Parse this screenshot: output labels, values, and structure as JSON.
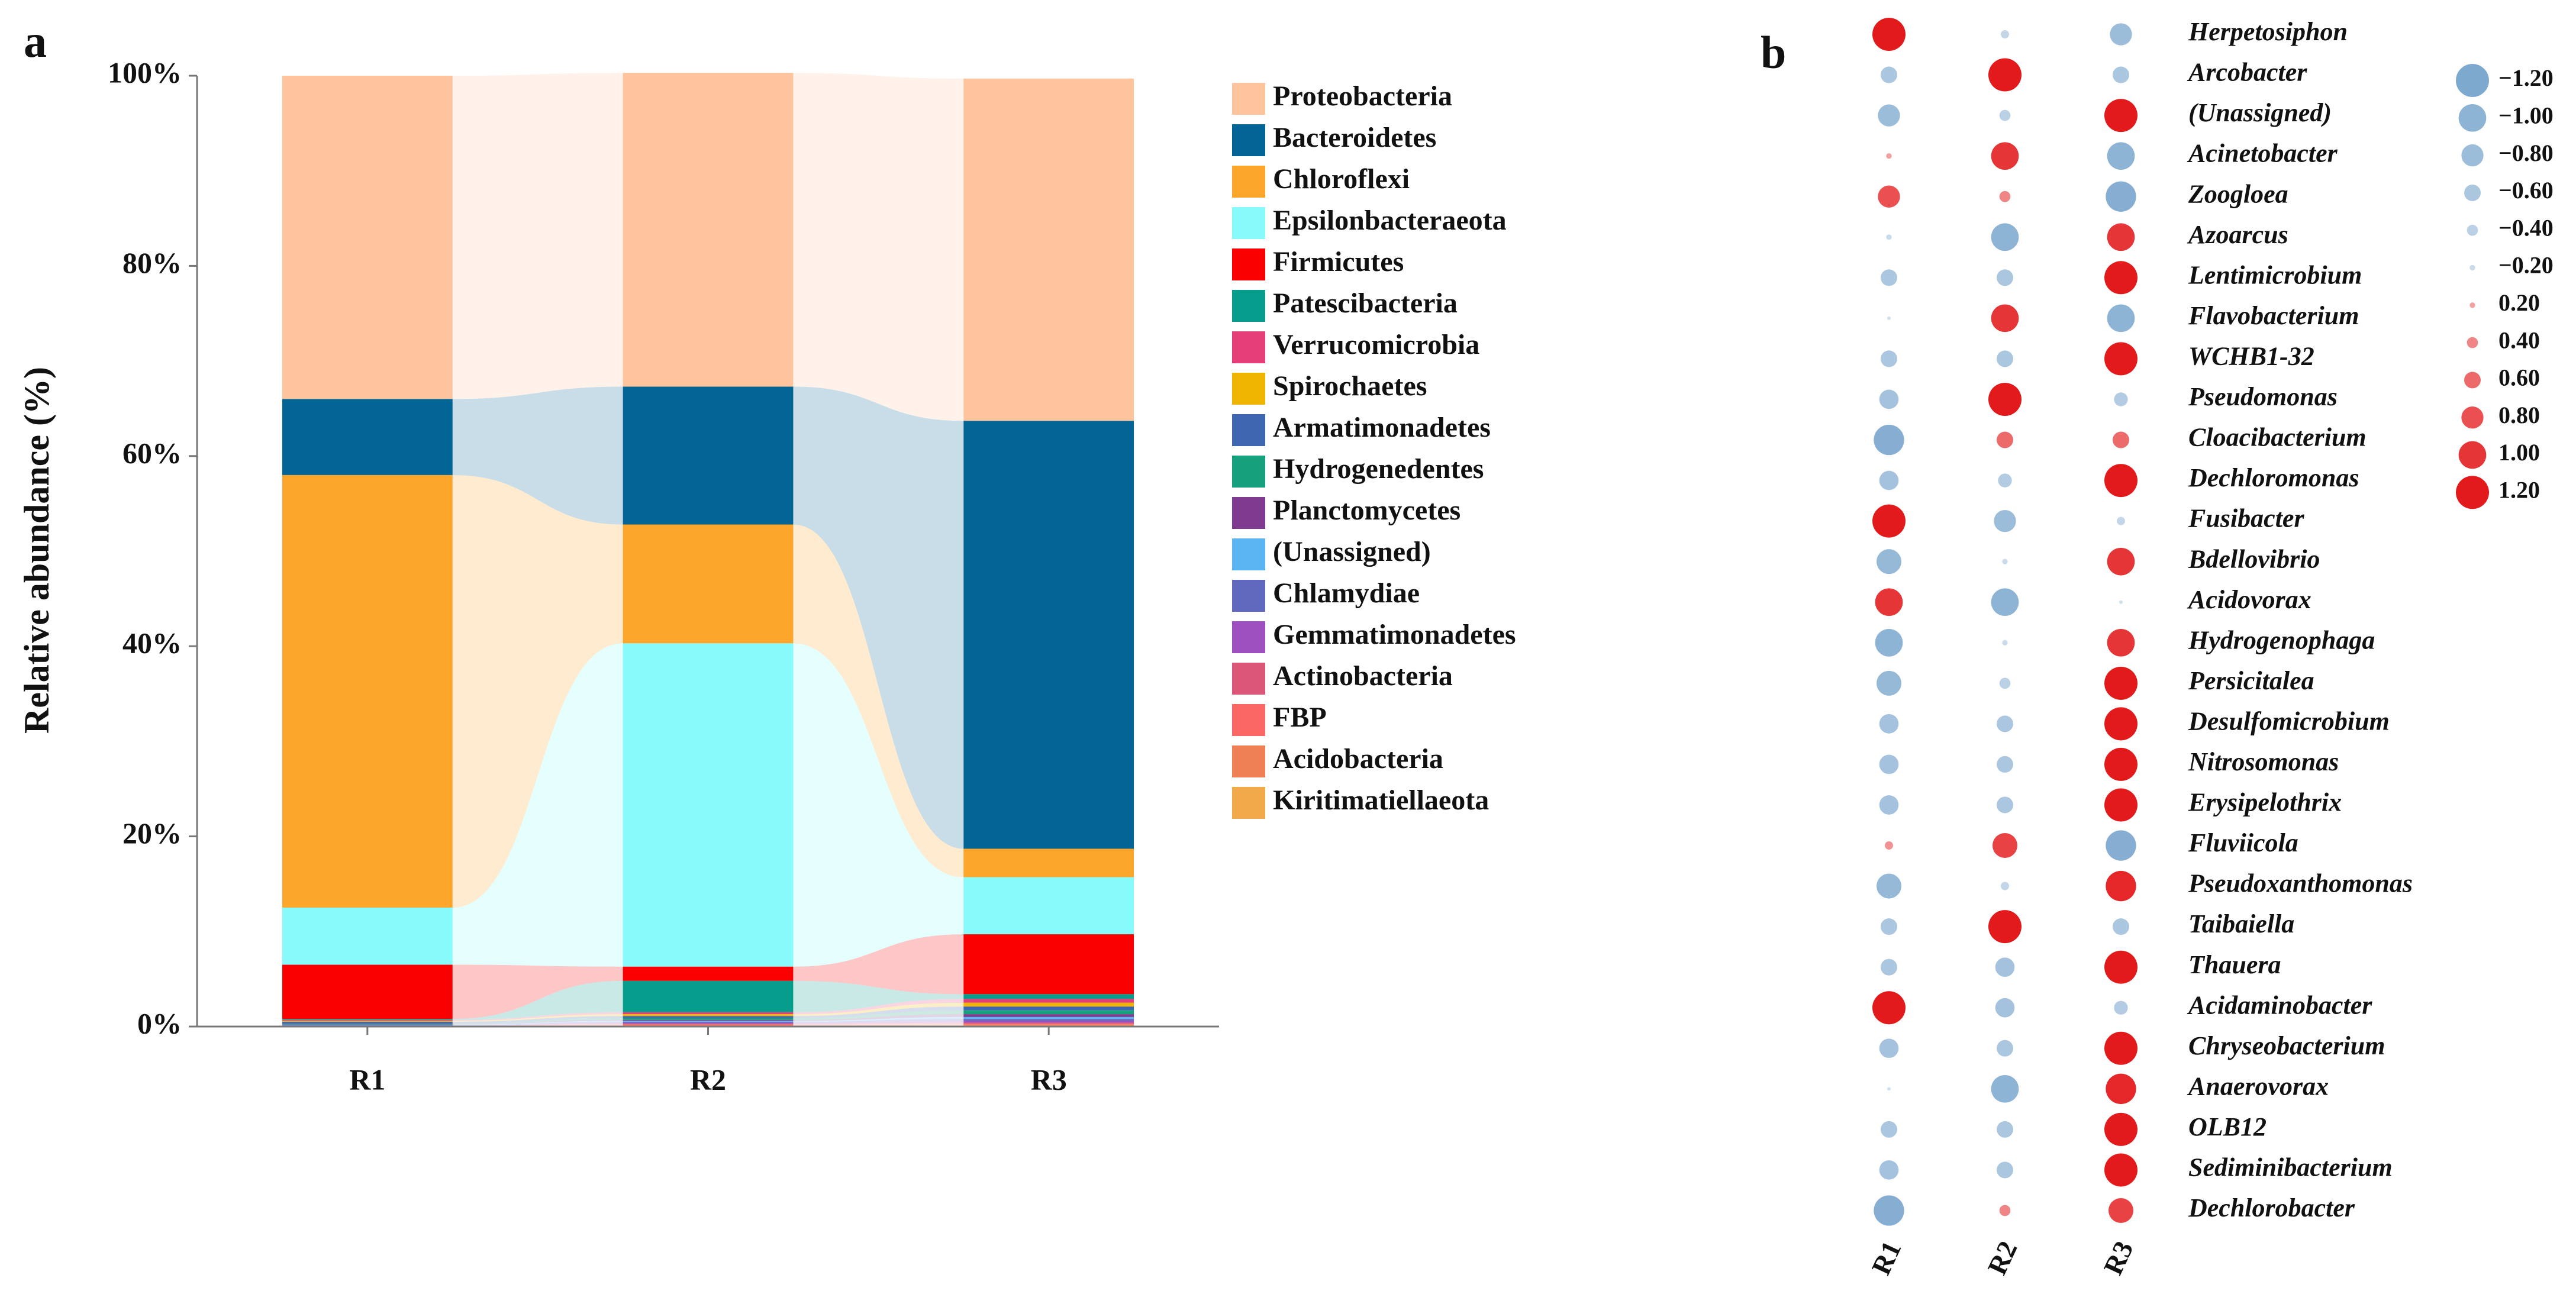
{
  "chart_data": [
    {
      "type": "alluvial_bar",
      "panel": "a",
      "ylabel": "Relative abundance (%)",
      "categories": [
        "R1",
        "R2",
        "R3"
      ],
      "ylim": [
        0,
        100
      ],
      "yticks": [
        {
          "value": 0,
          "label": "0%"
        },
        {
          "value": 20,
          "label": "20%"
        },
        {
          "value": 40,
          "label": "40%"
        },
        {
          "value": 60,
          "label": "60%"
        },
        {
          "value": 80,
          "label": "80%"
        },
        {
          "value": 100,
          "label": "100%"
        }
      ],
      "grid": false,
      "series": [
        {
          "name": "Proteobacteria",
          "color": "#fdc49e",
          "values": [
            34,
            33,
            36
          ]
        },
        {
          "name": "Bacteroidetes",
          "color": "#036596",
          "values": [
            8,
            14.5,
            45
          ]
        },
        {
          "name": "Chloroflexi",
          "color": "#fba52a",
          "values": [
            45.5,
            12.5,
            3
          ]
        },
        {
          "name": "Epsilonbacteraeota",
          "color": "#87fbfb",
          "values": [
            6,
            34,
            6
          ]
        },
        {
          "name": "Firmicutes",
          "color": "#fb0000",
          "values": [
            5.7,
            1.5,
            6.3
          ]
        },
        {
          "name": "Patescibacteria",
          "color": "#079d8d",
          "values": [
            0.1,
            3.3,
            0.5
          ]
        },
        {
          "name": "Verrucomicrobia",
          "color": "#e63e79",
          "values": [
            0.1,
            0.2,
            0.4
          ]
        },
        {
          "name": "Spirochaetes",
          "color": "#efb400",
          "values": [
            0.1,
            0.2,
            0.4
          ]
        },
        {
          "name": "Armatimonadetes",
          "color": "#3f66b0",
          "values": [
            0.2,
            0.2,
            0.4
          ]
        },
        {
          "name": "Hydrogenedentes",
          "color": "#16a17c",
          "values": [
            0.05,
            0.2,
            0.4
          ]
        },
        {
          "name": "Planctomycetes",
          "color": "#7e3b8f",
          "values": [
            0.05,
            0.1,
            0.3
          ]
        },
        {
          "name": "(Unassigned)",
          "color": "#5bb5f2",
          "values": [
            0.05,
            0.1,
            0.2
          ]
        },
        {
          "name": "Chlamydiae",
          "color": "#6069bd",
          "values": [
            0.05,
            0.1,
            0.2
          ]
        },
        {
          "name": "Gemmatimonadetes",
          "color": "#9e4fc0",
          "values": [
            0.03,
            0.1,
            0.2
          ]
        },
        {
          "name": "Actinobacteria",
          "color": "#db5679",
          "values": [
            0.03,
            0.1,
            0.1
          ]
        },
        {
          "name": "FBP",
          "color": "#fb6765",
          "values": [
            0.02,
            0.1,
            0.1
          ]
        },
        {
          "name": "Acidobacteria",
          "color": "#ef7f55",
          "values": [
            0.01,
            0.05,
            0.1
          ]
        },
        {
          "name": "Kiritimatiellaeota",
          "color": "#f1a94a",
          "values": [
            0.01,
            0.05,
            0.1
          ]
        }
      ]
    },
    {
      "type": "dot_matrix",
      "panel": "b",
      "columns": [
        "R1",
        "R2",
        "R3"
      ],
      "rows": [
        "Herpetosiphon",
        "Arcobacter",
        "(Unassigned)",
        "Acinetobacter",
        "Zoogloea",
        "Azoarcus",
        "Lentimicrobium",
        "Flavobacterium",
        "WCHB1-32",
        "Pseudomonas",
        "Cloacibacterium",
        "Dechloromonas",
        "Fusibacter",
        "Bdellovibrio",
        "Acidovorax",
        "Hydrogenophaga",
        "Persicitalea",
        "Desulfomicrobium",
        "Nitrosomonas",
        "Erysipelothrix",
        "Fluviicola",
        "Pseudoxanthomonas",
        "Taibaiella",
        "Thauera",
        "Acidaminobacter",
        "Chryseobacterium",
        "Anaerovorax",
        "OLB12",
        "Sediminibacterium",
        "Dechlorobacter"
      ],
      "values": [
        [
          1.2,
          -0.3,
          -0.8
        ],
        [
          -0.6,
          1.2,
          -0.6
        ],
        [
          -0.8,
          -0.4,
          1.2
        ],
        [
          0.2,
          1.0,
          -1.0
        ],
        [
          0.8,
          0.4,
          -1.1
        ],
        [
          -0.2,
          -1.0,
          1.0
        ],
        [
          -0.6,
          -0.6,
          1.2
        ],
        [
          -0.1,
          1.0,
          -1.0
        ],
        [
          -0.6,
          -0.6,
          1.2
        ],
        [
          -0.7,
          1.2,
          -0.5
        ],
        [
          -1.1,
          0.6,
          0.6
        ],
        [
          -0.7,
          -0.5,
          1.2
        ],
        [
          1.2,
          -0.8,
          -0.3
        ],
        [
          -0.9,
          -0.2,
          1.0
        ],
        [
          1.0,
          -1.0,
          -0.1
        ],
        [
          -1.0,
          -0.2,
          1.0
        ],
        [
          -0.9,
          -0.4,
          1.2
        ],
        [
          -0.7,
          -0.6,
          1.2
        ],
        [
          -0.7,
          -0.6,
          1.2
        ],
        [
          -0.7,
          -0.6,
          1.2
        ],
        [
          0.3,
          0.9,
          -1.1
        ],
        [
          -0.9,
          -0.3,
          1.1
        ],
        [
          -0.6,
          1.2,
          -0.6
        ],
        [
          -0.6,
          -0.7,
          1.2
        ],
        [
          1.2,
          -0.7,
          -0.5
        ],
        [
          -0.7,
          -0.6,
          1.2
        ],
        [
          -0.1,
          -1.0,
          1.1
        ],
        [
          -0.6,
          -0.6,
          1.2
        ],
        [
          -0.7,
          -0.6,
          1.2
        ],
        [
          -1.1,
          0.4,
          0.9
        ]
      ],
      "positive_color": "#e31a1c",
      "negative_color": "#7ea9cf",
      "size_legend": [
        {
          "value": -1.2,
          "label": "−1.20"
        },
        {
          "value": -1.0,
          "label": "−1.00"
        },
        {
          "value": -0.8,
          "label": "−0.80"
        },
        {
          "value": -0.6,
          "label": "−0.60"
        },
        {
          "value": -0.4,
          "label": "−0.40"
        },
        {
          "value": -0.2,
          "label": "−0.20"
        },
        {
          "value": 0.2,
          "label": "0.20"
        },
        {
          "value": 0.4,
          "label": "0.40"
        },
        {
          "value": 0.6,
          "label": "0.60"
        },
        {
          "value": 0.8,
          "label": "0.80"
        },
        {
          "value": 1.0,
          "label": "1.00"
        },
        {
          "value": 1.2,
          "label": "1.20"
        }
      ]
    }
  ]
}
